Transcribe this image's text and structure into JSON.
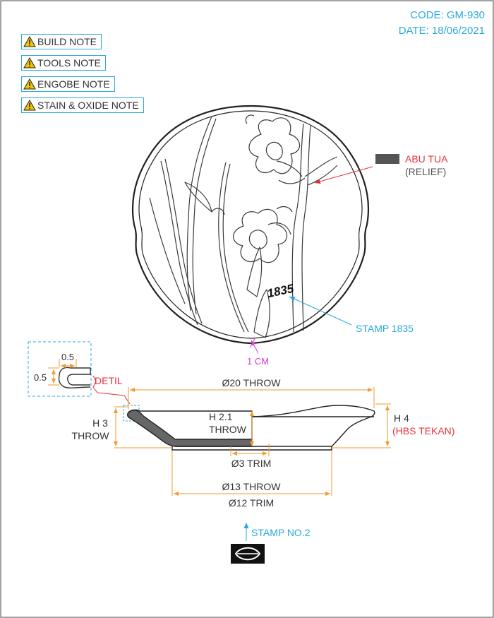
{
  "header": {
    "code": "CODE: GM-930",
    "date": "DATE: 18/06/2021"
  },
  "notes": [
    "BUILD NOTE",
    "TOOLS NOTE",
    "ENGOBE NOTE",
    "STAIN & OXIDE NOTE"
  ],
  "icons": {
    "note": "warning-icon",
    "stamp": "leaf-stamp-icon"
  },
  "colors": {
    "accent": "#2ba9dc",
    "dimension": "#f39a2c",
    "highlight": "#e5333b",
    "magenta": "#d63ad8",
    "relief": "#555555",
    "outline": "#222222"
  },
  "top_view": {
    "relief_label": "ABU TUA",
    "relief_sub": "(RELIEF)",
    "stamp_label": "STAMP 1835",
    "stamp_mark": "1835",
    "cm_label": "1 CM"
  },
  "detail": {
    "label": "DETIL",
    "dim_w": "0.5",
    "dim_h": "0.5"
  },
  "section": {
    "d20": "Ø20 THROW",
    "h3_a": "H 3",
    "h3_b": "THROW",
    "h21_a": "H 2.1",
    "h21_b": "THROW",
    "h4_a": "H 4",
    "h4_b": "(HBS TEKAN)",
    "d3": "Ø3 TRIM",
    "d13": "Ø13 THROW",
    "d12": "Ø12 TRIM",
    "stamp2": "STAMP NO.2"
  }
}
